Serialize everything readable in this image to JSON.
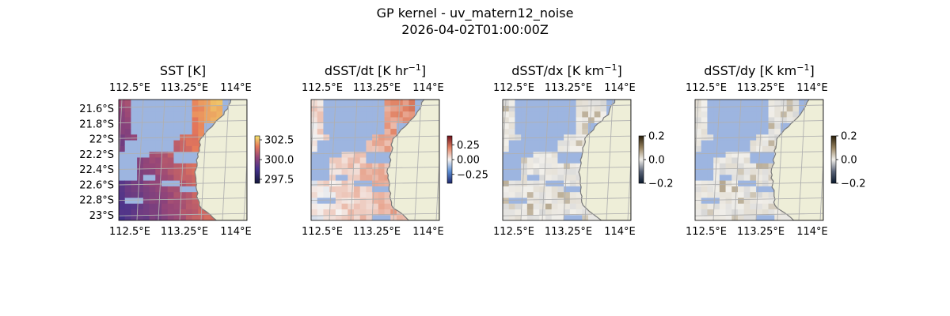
{
  "figure": {
    "suptitle_line1": "GP kernel - uv_matern12_noise",
    "suptitle_line2": "2026-04-02T01:00:00Z"
  },
  "colors": {
    "ocean_mask": "#9db5e0",
    "land": "#eeeed8",
    "coast": "#7a7a7a",
    "grid": "#b0b0b0"
  },
  "chart_data": [
    {
      "type": "heatmap",
      "title": "SST [K]",
      "x_ticks": [
        "112.5°E",
        "113.25°E",
        "114°E"
      ],
      "y_ticks": [
        "21.6°S",
        "21.8°S",
        "22°S",
        "22.2°S",
        "22.4°S",
        "22.6°S",
        "22.8°S",
        "23°S"
      ],
      "xlim": [
        112.5,
        114.0
      ],
      "ylim": [
        -23.0,
        -21.6
      ],
      "show_y_labels": true,
      "colormap": "thermal",
      "colorbar": {
        "ticks": [
          "302.5",
          "300.0",
          "297.5"
        ],
        "values": [
          302.5,
          300.0,
          297.5
        ],
        "range": [
          297.0,
          303.0
        ]
      }
    },
    {
      "type": "heatmap",
      "title": "dSST/dt [K hr−1]",
      "title_base": "dSST/dt [K hr",
      "title_sup": "−1",
      "title_end": "]",
      "x_ticks": [
        "112.5°E",
        "113.25°E",
        "114°E"
      ],
      "xlim": [
        112.5,
        114.0
      ],
      "show_y_labels": false,
      "colormap": "balance",
      "colorbar": {
        "ticks": [
          "0.25",
          "0.00",
          "−0.25"
        ],
        "values": [
          0.25,
          0.0,
          -0.25
        ],
        "range": [
          -0.4,
          0.4
        ]
      }
    },
    {
      "type": "heatmap",
      "title": "dSST/dx [K km−1]",
      "title_base": "dSST/dx [K km",
      "title_sup": "−1",
      "title_end": "]",
      "x_ticks": [
        "112.5°E",
        "113.25°E",
        "114°E"
      ],
      "xlim": [
        112.5,
        114.0
      ],
      "show_y_labels": false,
      "colormap": "diff",
      "colorbar": {
        "ticks": [
          "0.2",
          "0.0",
          "−0.2"
        ],
        "values": [
          0.2,
          0.0,
          -0.2
        ],
        "range": [
          -0.2,
          0.2
        ]
      }
    },
    {
      "type": "heatmap",
      "title": "dSST/dy [K km−1]",
      "title_base": "dSST/dy [K km",
      "title_sup": "−1",
      "title_end": "]",
      "x_ticks": [
        "112.5°E",
        "113.25°E",
        "114°E"
      ],
      "xlim": [
        112.5,
        114.0
      ],
      "show_y_labels": false,
      "colormap": "diff",
      "colorbar": {
        "ticks": [
          "0.2",
          "0.0",
          "−0.2"
        ],
        "values": [
          0.2,
          0.0,
          -0.2
        ],
        "range": [
          -0.2,
          0.2
        ]
      }
    }
  ]
}
